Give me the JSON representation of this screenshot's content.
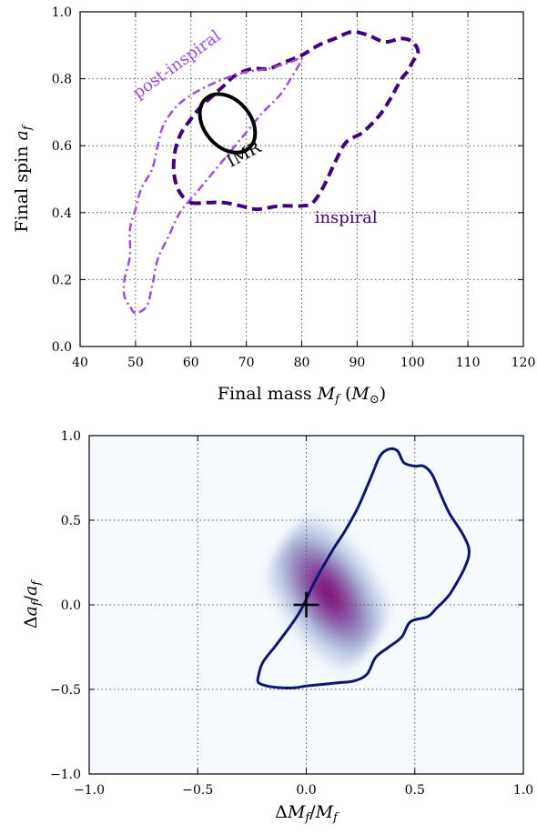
{
  "chart_data": [
    {
      "type": "contour",
      "xlabel": "Final mass M_f (M_⊙)",
      "xlabel_parts": {
        "text": "Final mass ",
        "var": "M",
        "sub": "f",
        "unit_open": " (",
        "unit_var": "M",
        "unit_sub": "⊙",
        "unit_close": ")"
      },
      "ylabel": "Final spin a_f",
      "ylabel_parts": {
        "text": "Final spin ",
        "var": "a",
        "sub": "f"
      },
      "xlim": [
        40,
        120
      ],
      "ylim": [
        0.0,
        1.0
      ],
      "xticks": [
        40,
        50,
        60,
        70,
        80,
        90,
        100,
        110,
        120
      ],
      "yticks": [
        0.0,
        0.2,
        0.4,
        0.6,
        0.8,
        1.0
      ],
      "xtick_labels": [
        "40",
        "50",
        "60",
        "70",
        "80",
        "90",
        "100",
        "110",
        "120"
      ],
      "ytick_labels": [
        "0.0",
        "0.2",
        "0.4",
        "0.6",
        "0.8",
        "1.0"
      ],
      "grid": true,
      "series": [
        {
          "name": "inspiral",
          "color": "#3f007d",
          "style": "dashed",
          "label_pos": [
            88,
            0.37
          ],
          "points": [
            [
              60,
              0.43
            ],
            [
              63,
              0.43
            ],
            [
              66,
              0.43
            ],
            [
              69,
              0.42
            ],
            [
              72,
              0.41
            ],
            [
              76,
              0.42
            ],
            [
              80,
              0.42
            ],
            [
              82,
              0.43
            ],
            [
              84,
              0.48
            ],
            [
              86,
              0.55
            ],
            [
              88,
              0.61
            ],
            [
              91,
              0.64
            ],
            [
              94,
              0.69
            ],
            [
              96,
              0.74
            ],
            [
              97,
              0.77
            ],
            [
              98,
              0.8
            ],
            [
              99,
              0.82
            ],
            [
              100,
              0.85
            ],
            [
              101,
              0.88
            ],
            [
              100,
              0.91
            ],
            [
              98,
              0.92
            ],
            [
              95,
              0.91
            ],
            [
              92,
              0.93
            ],
            [
              89,
              0.94
            ],
            [
              86,
              0.92
            ],
            [
              83,
              0.9
            ],
            [
              80,
              0.87
            ],
            [
              77,
              0.85
            ],
            [
              74,
              0.83
            ],
            [
              71,
              0.83
            ],
            [
              68,
              0.81
            ],
            [
              66,
              0.78
            ],
            [
              64,
              0.75
            ],
            [
              62,
              0.72
            ],
            [
              60,
              0.68
            ],
            [
              58,
              0.63
            ],
            [
              57,
              0.57
            ],
            [
              57,
              0.51
            ],
            [
              58,
              0.46
            ],
            [
              60,
              0.43
            ]
          ]
        },
        {
          "name": "post-inspiral",
          "color": "#9a4ee0",
          "style": "dashdot",
          "label_pos": [
            58,
            0.83
          ],
          "label_rotation": -36,
          "points": [
            [
              50,
              0.1
            ],
            [
              49,
              0.12
            ],
            [
              48,
              0.15
            ],
            [
              48,
              0.2
            ],
            [
              49,
              0.27
            ],
            [
              49,
              0.35
            ],
            [
              50,
              0.41
            ],
            [
              51,
              0.47
            ],
            [
              53,
              0.53
            ],
            [
              54,
              0.6
            ],
            [
              55,
              0.66
            ],
            [
              57,
              0.71
            ],
            [
              59,
              0.74
            ],
            [
              62,
              0.77
            ],
            [
              66,
              0.8
            ],
            [
              70,
              0.82
            ],
            [
              74,
              0.83
            ],
            [
              78,
              0.85
            ],
            [
              80,
              0.86
            ],
            [
              78,
              0.8
            ],
            [
              76,
              0.75
            ],
            [
              73,
              0.7
            ],
            [
              70,
              0.64
            ],
            [
              67,
              0.58
            ],
            [
              64,
              0.52
            ],
            [
              61,
              0.46
            ],
            [
              58,
              0.4
            ],
            [
              56,
              0.33
            ],
            [
              54,
              0.26
            ],
            [
              53,
              0.18
            ],
            [
              52,
              0.12
            ],
            [
              50,
              0.1
            ]
          ]
        },
        {
          "name": "IMR",
          "color": "#000000",
          "style": "solid",
          "label_pos": [
            70,
            0.56
          ],
          "label_rotation": -28,
          "ellipse": {
            "cx": 66.6,
            "cy": 0.667,
            "rx": 4.2,
            "ry": 0.098,
            "angle": 40
          }
        }
      ]
    },
    {
      "type": "heatmap",
      "xlabel": "ΔM_f / M_f",
      "xlabel_parts": {
        "delta": "Δ",
        "var": "M",
        "sub": "f",
        "slash": "/",
        "var2": "M",
        "sub2": "f"
      },
      "ylabel": "Δa_f / a_f",
      "ylabel_parts": {
        "delta": "Δ",
        "var": "a",
        "sub": "f",
        "slash": "/",
        "var2": "a",
        "sub2": "f"
      },
      "xlim": [
        -1.0,
        1.0
      ],
      "ylim": [
        -1.0,
        1.0
      ],
      "xticks": [
        -1.0,
        -0.5,
        0.0,
        0.5,
        1.0
      ],
      "yticks": [
        -1.0,
        -0.5,
        0.0,
        0.5,
        1.0
      ],
      "xtick_labels": [
        "−1.0",
        "−0.5",
        "0.0",
        "0.5",
        "1.0"
      ],
      "ytick_labels": [
        "−1.0",
        "−0.5",
        "0.0",
        "0.5",
        "1.0"
      ],
      "grid": true,
      "density_peak": [
        0.1,
        0.07
      ],
      "colormap": [
        "#f7fbff",
        "#8c96c6",
        "#88419d",
        "#810f7c"
      ],
      "marker": {
        "x": 0.0,
        "y": 0.0,
        "symbol": "+",
        "color": "#000000"
      },
      "contour_color": "#0d1670",
      "contour": [
        [
          -0.22,
          -0.42
        ],
        [
          -0.2,
          -0.34
        ],
        [
          -0.14,
          -0.24
        ],
        [
          -0.07,
          -0.12
        ],
        [
          -0.02,
          -0.02
        ],
        [
          0.04,
          0.14
        ],
        [
          0.12,
          0.32
        ],
        [
          0.18,
          0.44
        ],
        [
          0.24,
          0.58
        ],
        [
          0.3,
          0.76
        ],
        [
          0.34,
          0.88
        ],
        [
          0.38,
          0.92
        ],
        [
          0.42,
          0.91
        ],
        [
          0.45,
          0.84
        ],
        [
          0.5,
          0.82
        ],
        [
          0.54,
          0.82
        ],
        [
          0.58,
          0.77
        ],
        [
          0.62,
          0.65
        ],
        [
          0.66,
          0.54
        ],
        [
          0.72,
          0.42
        ],
        [
          0.75,
          0.32
        ],
        [
          0.73,
          0.22
        ],
        [
          0.67,
          0.08
        ],
        [
          0.64,
          0.03
        ],
        [
          0.6,
          -0.02
        ],
        [
          0.56,
          -0.07
        ],
        [
          0.48,
          -0.1
        ],
        [
          0.44,
          -0.19
        ],
        [
          0.38,
          -0.25
        ],
        [
          0.32,
          -0.31
        ],
        [
          0.28,
          -0.41
        ],
        [
          0.22,
          -0.45
        ],
        [
          0.15,
          -0.46
        ],
        [
          0.08,
          -0.47
        ],
        [
          0.0,
          -0.48
        ],
        [
          -0.05,
          -0.49
        ],
        [
          -0.12,
          -0.49
        ],
        [
          -0.18,
          -0.48
        ],
        [
          -0.22,
          -0.46
        ],
        [
          -0.22,
          -0.42
        ]
      ]
    }
  ]
}
